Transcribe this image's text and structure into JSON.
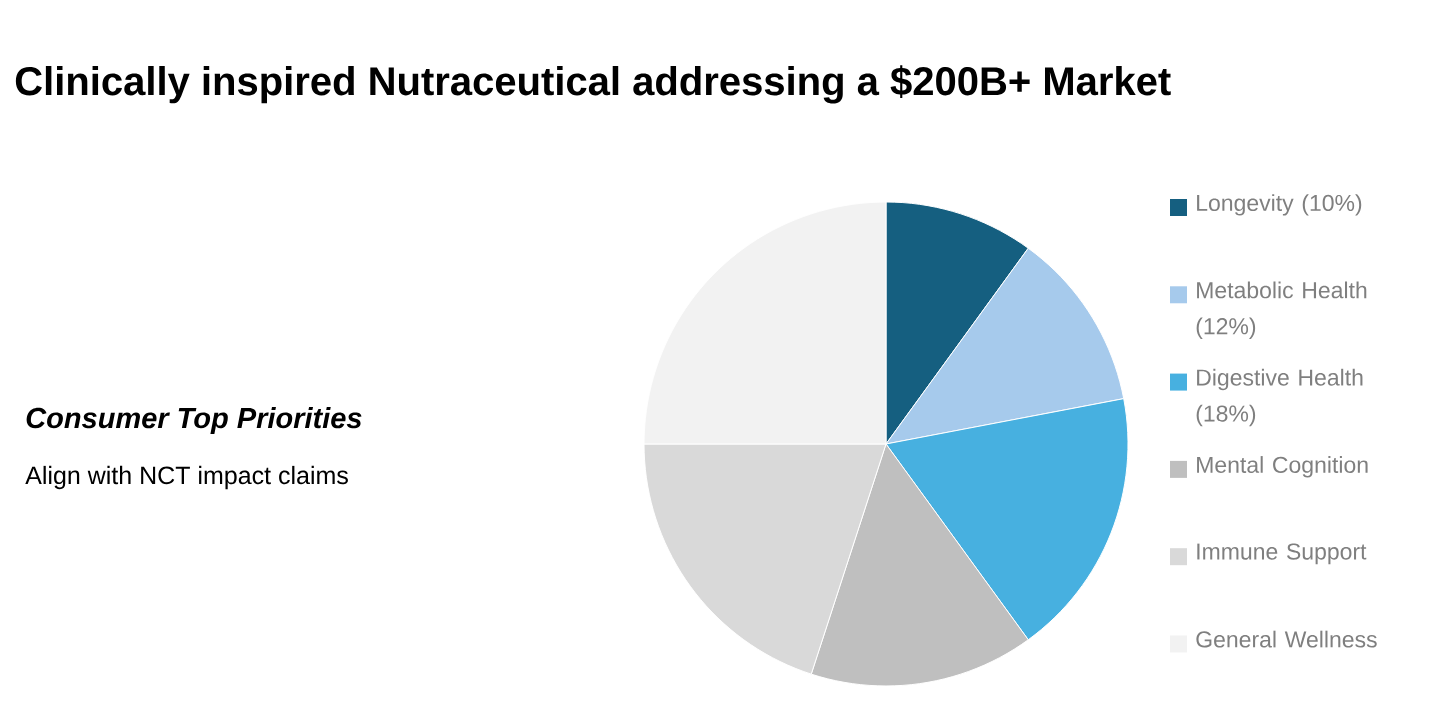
{
  "chart_data": {
    "type": "pie",
    "title": "Clinically inspired Nutraceutical addressing a $200B+ Market",
    "annotations": [
      "Consumer Top Priorities",
      "Align with NCT impact claims"
    ],
    "categories": [
      "Longevity (10%)",
      "Metabolic Health (12%)",
      "Digestive Health (18%)",
      "Mental Cognition",
      "Immune Support",
      "General Wellness"
    ],
    "values": [
      10,
      12,
      18,
      15,
      20,
      25
    ],
    "colors": [
      "#155f80",
      "#a6caec",
      "#47b0e0",
      "#bfbfbf",
      "#d9d9d9",
      "#f2f2f2"
    ],
    "legend": "right"
  }
}
